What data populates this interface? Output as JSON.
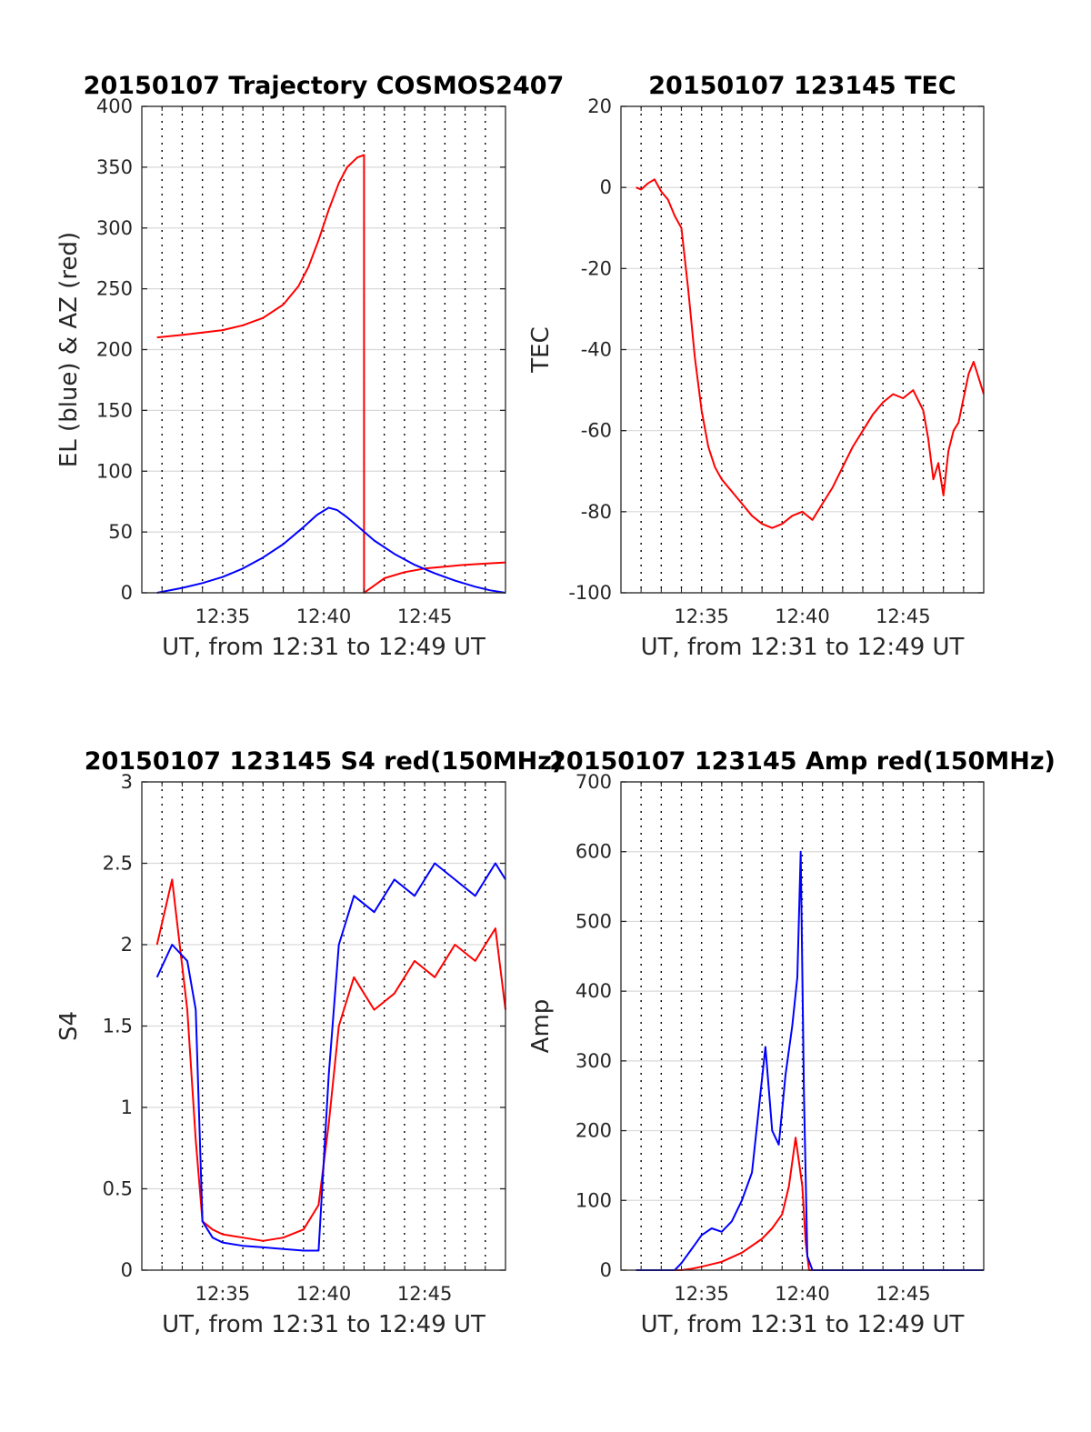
{
  "colors": {
    "red": "#ff0000",
    "blue": "#0000ff",
    "axis": "#262626",
    "grid_solid": "#d9d9d9",
    "grid_dotted": "#000000"
  },
  "chart_data": [
    {
      "id": "trajectory",
      "type": "line",
      "title": "20150107 Trajectory COSMOS2407",
      "xlabel": "UT, from 12:31 to 12:49 UT",
      "ylabel": "EL (blue) & AZ (red)",
      "xlim": [
        "12:31:00",
        "12:49:00"
      ],
      "ylim": [
        0,
        400
      ],
      "yticks": [
        "0",
        "50",
        "100",
        "150",
        "200",
        "250",
        "300",
        "350",
        "400"
      ],
      "xticks": [
        "12:35",
        "12:40",
        "12:45"
      ],
      "grid": true,
      "series": [
        {
          "color": "red",
          "x": [
            "12:31:45",
            "12:33:00",
            "12:34:00",
            "12:35:00",
            "12:36:00",
            "12:37:00",
            "12:38:00",
            "12:38:45",
            "12:39:15",
            "12:39:45",
            "12:40:15",
            "12:40:45",
            "12:41:10",
            "12:41:40",
            "12:42:00",
            "12:42:00",
            "12:43:00",
            "12:44:00",
            "12:45:00",
            "12:46:00",
            "12:47:00",
            "12:48:00",
            "12:49:00"
          ],
          "y": [
            210,
            212,
            214,
            216,
            220,
            226,
            237,
            252,
            268,
            290,
            315,
            337,
            350,
            358,
            360,
            0,
            12,
            17,
            20,
            21.5,
            23,
            24,
            25
          ]
        },
        {
          "color": "blue",
          "x": [
            "12:31:45",
            "12:33:00",
            "12:34:00",
            "12:35:00",
            "12:36:00",
            "12:37:00",
            "12:38:00",
            "12:39:00",
            "12:39:40",
            "12:40:15",
            "12:40:40",
            "12:41:10",
            "12:41:40",
            "12:42:30",
            "12:43:30",
            "12:44:30",
            "12:45:30",
            "12:46:30",
            "12:47:30",
            "12:48:15",
            "12:49:00"
          ],
          "y": [
            0,
            4,
            8,
            13,
            20,
            29,
            40,
            54,
            64,
            70,
            68,
            62,
            55,
            43,
            32,
            23,
            16,
            10,
            5,
            2,
            0
          ]
        }
      ]
    },
    {
      "id": "tec",
      "type": "line",
      "title": "20150107 123145 TEC",
      "xlabel": "UT, from 12:31 to 12:49 UT",
      "ylabel": "TEC",
      "xlim": [
        "12:31:00",
        "12:49:00"
      ],
      "ylim": [
        -100,
        20
      ],
      "yticks": [
        "-100",
        "-80",
        "-60",
        "-40",
        "-20",
        "0",
        "20"
      ],
      "xticks": [
        "12:35",
        "12:40",
        "12:45"
      ],
      "grid": true,
      "series": [
        {
          "color": "red",
          "x": [
            "12:31:45",
            "12:32:00",
            "12:32:20",
            "12:32:40",
            "12:33:00",
            "12:33:20",
            "12:33:40",
            "12:34:00",
            "12:34:20",
            "12:34:40",
            "12:35:00",
            "12:35:20",
            "12:35:40",
            "12:36:00",
            "12:36:30",
            "12:37:00",
            "12:37:30",
            "12:38:00",
            "12:38:30",
            "12:39:00",
            "12:39:30",
            "12:40:00",
            "12:40:30",
            "12:41:00",
            "12:41:30",
            "12:42:00",
            "12:42:30",
            "12:43:00",
            "12:43:30",
            "12:44:00",
            "12:44:30",
            "12:45:00",
            "12:45:30",
            "12:46:00",
            "12:46:15",
            "12:46:30",
            "12:46:45",
            "12:47:00",
            "12:47:15",
            "12:47:30",
            "12:47:45",
            "12:48:00",
            "12:48:15",
            "12:48:30",
            "12:48:45",
            "12:49:00"
          ],
          "y": [
            0,
            -0.5,
            1,
            2,
            -1,
            -3,
            -7,
            -10,
            -25,
            -42,
            -55,
            -64,
            -69,
            -72,
            -75,
            -78,
            -81,
            -83,
            -84,
            -83,
            -81,
            -80,
            -82,
            -78,
            -74,
            -69,
            -64,
            -60,
            -56,
            -53,
            -51,
            -52,
            -50,
            -55,
            -62,
            -72,
            -68,
            -76,
            -65,
            -60,
            -58,
            -52,
            -46,
            -43,
            -47,
            -51
          ]
        }
      ]
    },
    {
      "id": "s4",
      "type": "line",
      "title": "20150107 123145 S4 red(150MHz)",
      "xlabel": "UT, from 12:31 to 12:49 UT",
      "ylabel": "S4",
      "xlim": [
        "12:31:00",
        "12:49:00"
      ],
      "ylim": [
        0,
        3
      ],
      "yticks": [
        "0",
        "0.5",
        "1",
        "1.5",
        "2",
        "2.5",
        "3"
      ],
      "xticks": [
        "12:35",
        "12:40",
        "12:45"
      ],
      "grid": true,
      "series": [
        {
          "color": "red",
          "x": [
            "12:31:45",
            "12:32:30",
            "12:33:15",
            "12:33:40",
            "12:34:00",
            "12:34:30",
            "12:35:00",
            "12:36:00",
            "12:37:00",
            "12:38:00",
            "12:39:00",
            "12:39:45",
            "12:40:15",
            "12:40:45",
            "12:41:30",
            "12:42:30",
            "12:43:30",
            "12:44:30",
            "12:45:30",
            "12:46:30",
            "12:47:30",
            "12:48:30",
            "12:49:00"
          ],
          "y": [
            2.0,
            2.4,
            1.6,
            0.8,
            0.3,
            0.25,
            0.22,
            0.2,
            0.18,
            0.2,
            0.25,
            0.4,
            0.9,
            1.5,
            1.8,
            1.6,
            1.7,
            1.9,
            1.8,
            2.0,
            1.9,
            2.1,
            1.6
          ]
        },
        {
          "color": "blue",
          "x": [
            "12:31:45",
            "12:32:30",
            "12:33:15",
            "12:33:40",
            "12:34:00",
            "12:34:30",
            "12:35:00",
            "12:36:00",
            "12:37:00",
            "12:38:00",
            "12:39:00",
            "12:39:45",
            "12:40:15",
            "12:40:45",
            "12:41:30",
            "12:42:30",
            "12:43:30",
            "12:44:30",
            "12:45:30",
            "12:46:30",
            "12:47:30",
            "12:48:30",
            "12:49:00"
          ],
          "y": [
            1.8,
            2.0,
            1.9,
            1.6,
            0.3,
            0.2,
            0.17,
            0.15,
            0.14,
            0.13,
            0.12,
            0.12,
            1.2,
            2.0,
            2.3,
            2.2,
            2.4,
            2.3,
            2.5,
            2.4,
            2.3,
            2.5,
            2.4
          ]
        }
      ]
    },
    {
      "id": "amp",
      "type": "line",
      "title": "20150107 123145 Amp red(150MHz)",
      "xlabel": "UT, from 12:31 to 12:49 UT",
      "ylabel": "Amp",
      "xlim": [
        "12:31:00",
        "12:49:00"
      ],
      "ylim": [
        0,
        700
      ],
      "yticks": [
        "0",
        "100",
        "200",
        "300",
        "400",
        "500",
        "600",
        "700"
      ],
      "xticks": [
        "12:35",
        "12:40",
        "12:45"
      ],
      "grid": true,
      "series": [
        {
          "color": "red",
          "x": [
            "12:31:45",
            "12:33:00",
            "12:34:00",
            "12:34:30",
            "12:35:00",
            "12:36:00",
            "12:37:00",
            "12:38:00",
            "12:38:30",
            "12:39:00",
            "12:39:20",
            "12:39:40",
            "12:40:00",
            "12:40:10",
            "12:40:20",
            "12:41:00",
            "12:49:00"
          ],
          "y": [
            0,
            0,
            0,
            2,
            5,
            12,
            25,
            45,
            60,
            80,
            120,
            190,
            120,
            40,
            0,
            0,
            0
          ]
        },
        {
          "color": "blue",
          "x": [
            "12:31:45",
            "12:33:00",
            "12:33:40",
            "12:34:00",
            "12:34:30",
            "12:35:00",
            "12:35:30",
            "12:36:00",
            "12:36:30",
            "12:37:00",
            "12:37:30",
            "12:37:50",
            "12:38:10",
            "12:38:30",
            "12:38:50",
            "12:39:10",
            "12:39:30",
            "12:39:45",
            "12:39:55",
            "12:40:05",
            "12:40:15",
            "12:40:30",
            "12:41:00",
            "12:49:00"
          ],
          "y": [
            0,
            0,
            0,
            10,
            30,
            50,
            60,
            55,
            70,
            100,
            140,
            230,
            320,
            200,
            180,
            280,
            350,
            420,
            600,
            250,
            20,
            0,
            0,
            0
          ]
        }
      ]
    }
  ]
}
